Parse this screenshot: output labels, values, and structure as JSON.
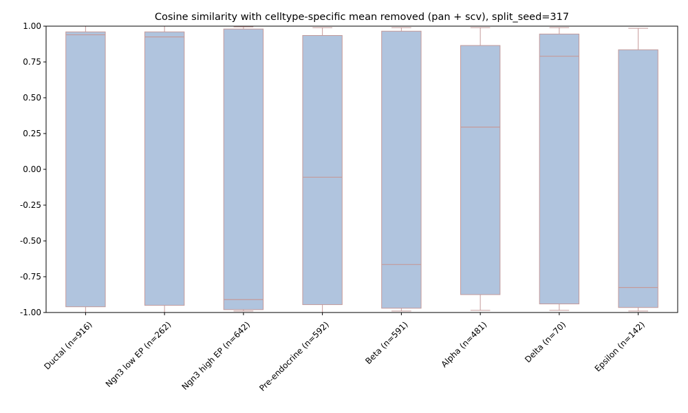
{
  "chart_data": {
    "type": "box",
    "title": "Cosine similarity with celltype-specific mean removed (pan + scv), split_seed=317",
    "xlabel": "",
    "ylabel": "",
    "ylim": [
      -1.0,
      1.0
    ],
    "yticks": [
      "-1.00",
      "-0.75",
      "-0.50",
      "-0.25",
      "0.00",
      "0.25",
      "0.50",
      "0.75",
      "1.00"
    ],
    "ytick_values": [
      -1.0,
      -0.75,
      -0.5,
      -0.25,
      0.0,
      0.25,
      0.5,
      0.75,
      1.0
    ],
    "grid": false,
    "colors": {
      "box_fill": "#b0c4de",
      "box_edge": "#c49a9a",
      "axis": "#000000"
    },
    "categories": [
      "Ductal (n=916)",
      "Ngn3 low EP (n=262)",
      "Ngn3 high EP (n=642)",
      "Pre-endocrine (n=592)",
      "Beta (n=591)",
      "Alpha (n=481)",
      "Delta (n=70)",
      "Epsilon (n=142)"
    ],
    "boxes": [
      {
        "whisker_low": -1.0,
        "q1": -0.96,
        "median": 0.94,
        "q3": 0.96,
        "whisker_high": 1.0
      },
      {
        "whisker_low": -1.0,
        "q1": -0.95,
        "median": 0.925,
        "q3": 0.96,
        "whisker_high": 1.0
      },
      {
        "whisker_low": -0.99,
        "q1": -0.98,
        "median": -0.91,
        "q3": 0.98,
        "whisker_high": 0.995
      },
      {
        "whisker_low": -1.0,
        "q1": -0.945,
        "median": -0.055,
        "q3": 0.935,
        "whisker_high": 0.99
      },
      {
        "whisker_low": -0.99,
        "q1": -0.97,
        "median": -0.665,
        "q3": 0.965,
        "whisker_high": 0.99
      },
      {
        "whisker_low": -0.985,
        "q1": -0.875,
        "median": 0.295,
        "q3": 0.865,
        "whisker_high": 0.99
      },
      {
        "whisker_low": -0.985,
        "q1": -0.94,
        "median": 0.79,
        "q3": 0.945,
        "whisker_high": 0.99
      },
      {
        "whisker_low": -0.99,
        "q1": -0.965,
        "median": -0.825,
        "q3": 0.835,
        "whisker_high": 0.985
      }
    ]
  }
}
